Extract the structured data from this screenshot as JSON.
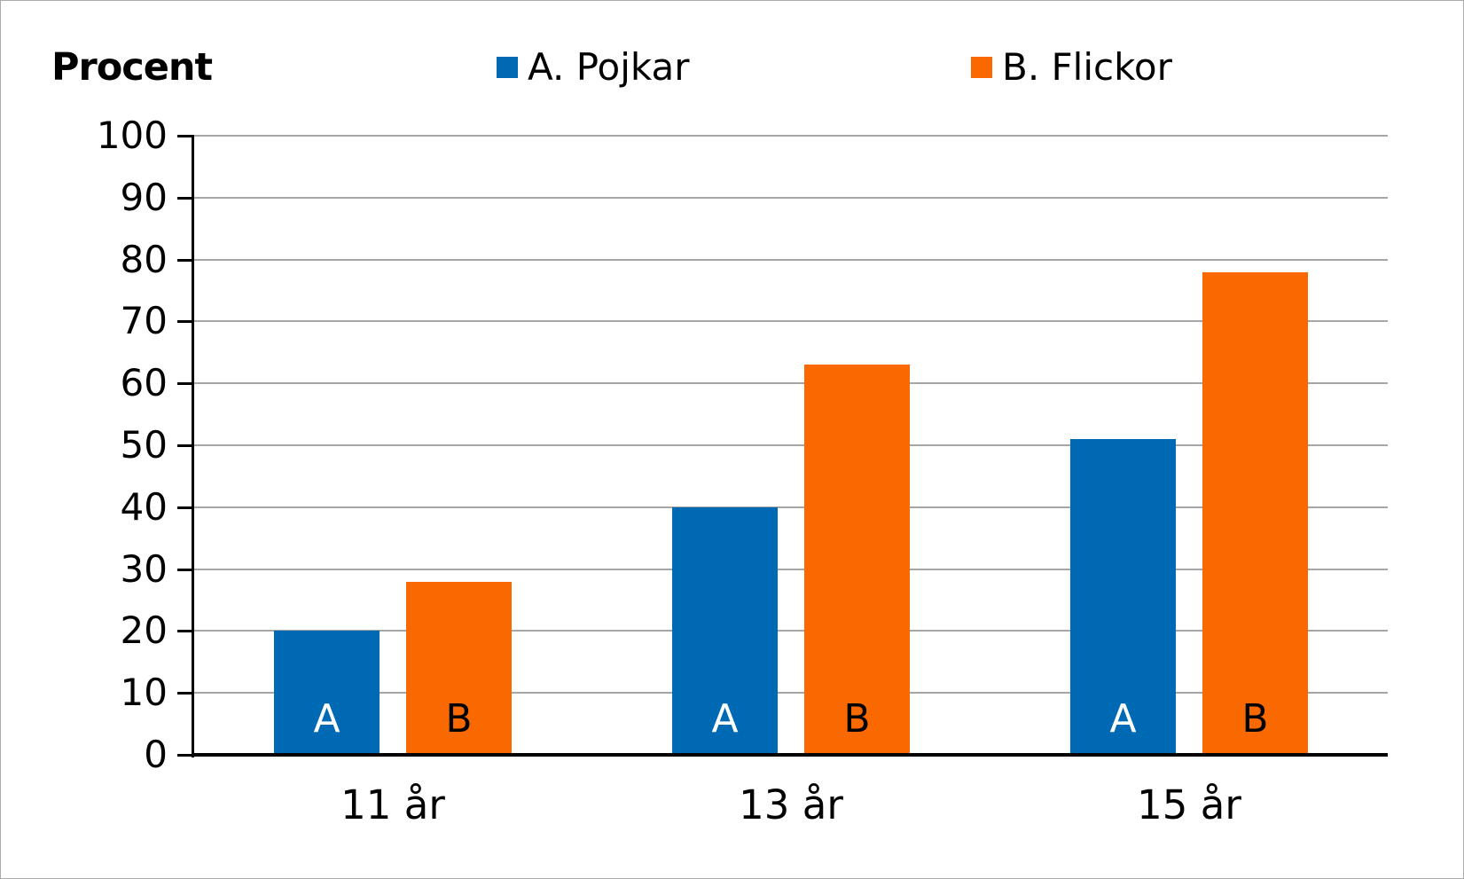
{
  "page": {
    "background": "#FFFFFF",
    "border_color": "#ABABAB"
  },
  "chart_data": {
    "type": "bar",
    "title": "Procent",
    "categories": [
      "11 år",
      "13 år",
      "15 år"
    ],
    "series": [
      {
        "name": "A. Pojkar",
        "bar_label": "A",
        "color": "#0069B4",
        "bar_label_color": "#FFFFFF",
        "values": [
          20,
          40,
          51
        ]
      },
      {
        "name": "B. Flickor",
        "bar_label": "B",
        "color": "#FA6900",
        "bar_label_color": "#000000",
        "values": [
          28,
          63,
          78
        ]
      }
    ],
    "ylabel": "Procent",
    "ylim": [
      0,
      100
    ],
    "yticks": [
      0,
      10,
      20,
      30,
      40,
      50,
      60,
      70,
      80,
      90,
      100
    ],
    "grid": true,
    "gridline_color": "#A6A6A6",
    "axis_color": "#000000",
    "legend_position": "top"
  }
}
